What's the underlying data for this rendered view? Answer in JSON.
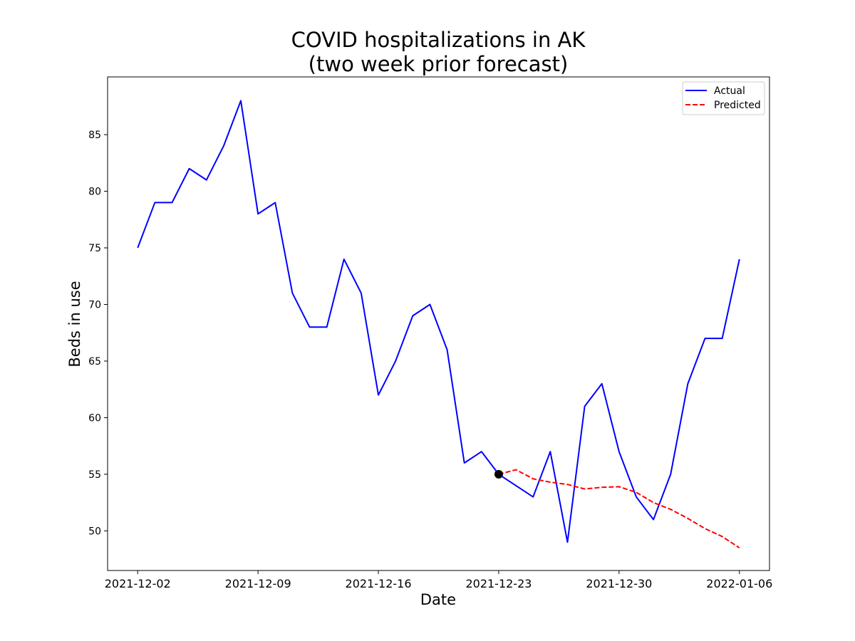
{
  "chart_data": {
    "type": "line",
    "title": "COVID hospitalizations in AK",
    "subtitle": "(two week prior forecast)",
    "xlabel": "Date",
    "ylabel": "Beds in use",
    "x_start": "2021-12-02",
    "x_ticks": [
      "2021-12-02",
      "2021-12-09",
      "2021-12-16",
      "2021-12-23",
      "2021-12-30",
      "2022-01-06"
    ],
    "y_ticks": [
      50,
      55,
      60,
      65,
      70,
      75,
      80,
      85
    ],
    "xlim": [
      "2021-12-00T06:00",
      "2022-01-07T18:00"
    ],
    "ylim": [
      46.5,
      90.1
    ],
    "grid": false,
    "legend_position": "top-right",
    "series": [
      {
        "name": "Actual",
        "color": "#0000ff",
        "style": "solid",
        "x": [
          "2021-12-02",
          "2021-12-03",
          "2021-12-04",
          "2021-12-05",
          "2021-12-06",
          "2021-12-07",
          "2021-12-08",
          "2021-12-09",
          "2021-12-10",
          "2021-12-11",
          "2021-12-12",
          "2021-12-13",
          "2021-12-14",
          "2021-12-15",
          "2021-12-16",
          "2021-12-17",
          "2021-12-18",
          "2021-12-19",
          "2021-12-20",
          "2021-12-21",
          "2021-12-22",
          "2021-12-23",
          "2021-12-24",
          "2021-12-25",
          "2021-12-26",
          "2021-12-27",
          "2021-12-28",
          "2021-12-29",
          "2021-12-30",
          "2021-12-31",
          "2022-01-01",
          "2022-01-02",
          "2022-01-03",
          "2022-01-04",
          "2022-01-05",
          "2022-01-06"
        ],
        "values": [
          75,
          79,
          79,
          82,
          81,
          84,
          88,
          78,
          79,
          71,
          68,
          68,
          74,
          71,
          62,
          65,
          69,
          70,
          66,
          56,
          57,
          55,
          54,
          53,
          57,
          49,
          61,
          63,
          57,
          53,
          51,
          55,
          63,
          67,
          67,
          74
        ]
      },
      {
        "name": "Predicted",
        "color": "#ff0000",
        "style": "dashed",
        "x": [
          "2021-12-23",
          "2021-12-24",
          "2021-12-25",
          "2021-12-26",
          "2021-12-27",
          "2021-12-28",
          "2021-12-29",
          "2021-12-30",
          "2021-12-31",
          "2022-01-01",
          "2022-01-02",
          "2022-01-03",
          "2022-01-04",
          "2022-01-05",
          "2022-01-06"
        ],
        "values": [
          55.0,
          55.4,
          54.6,
          54.3,
          54.1,
          53.7,
          53.85,
          53.9,
          53.4,
          52.5,
          51.9,
          51.1,
          50.2,
          49.5,
          48.5
        ]
      }
    ],
    "marker": {
      "x": "2021-12-23",
      "y": 55,
      "color": "#000000"
    }
  }
}
